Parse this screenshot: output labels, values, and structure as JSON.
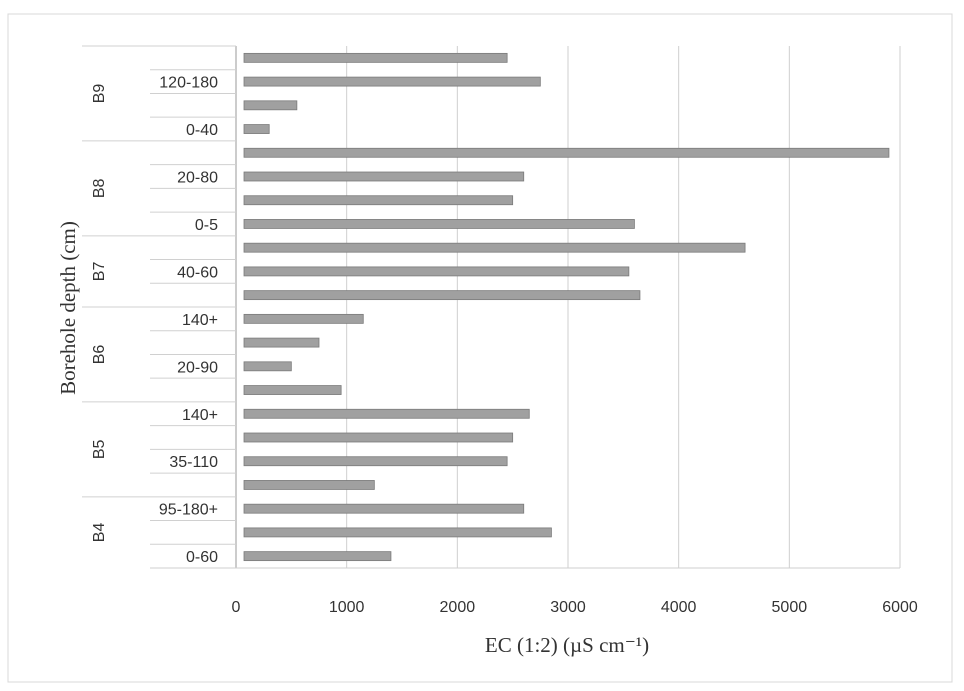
{
  "chart_data": {
    "type": "bar",
    "orientation": "horizontal",
    "xlabel": "EC (1:2) (µS cm⁻¹)",
    "ylabel": "Borehole depth (cm)",
    "xlim": [
      0,
      6000
    ],
    "xticks": [
      "0",
      "1000",
      "2000",
      "3000",
      "4000",
      "5000",
      "6000"
    ],
    "grid": true,
    "bar_color": "#a0a0a0",
    "categories": [
      "",
      "120-180",
      "",
      "0-40",
      "",
      "20-80",
      "",
      "0-5",
      "",
      "40-60",
      "",
      "140+",
      "",
      "20-90",
      "",
      "140+",
      "",
      "35-110",
      "",
      "95-180+",
      "",
      "0-60"
    ],
    "values": [
      2450,
      2750,
      550,
      300,
      5900,
      2600,
      2500,
      3600,
      4600,
      3550,
      3650,
      1150,
      750,
      500,
      950,
      2650,
      2500,
      2450,
      1250,
      2600,
      2850,
      1400
    ],
    "groups": [
      {
        "label": "B9",
        "start": 0,
        "end": 3
      },
      {
        "label": "B8",
        "start": 4,
        "end": 7
      },
      {
        "label": "B7",
        "start": 8,
        "end": 10
      },
      {
        "label": "B6",
        "start": 11,
        "end": 14
      },
      {
        "label": "B5",
        "start": 15,
        "end": 18
      },
      {
        "label": "B4",
        "start": 19,
        "end": 21
      }
    ]
  }
}
